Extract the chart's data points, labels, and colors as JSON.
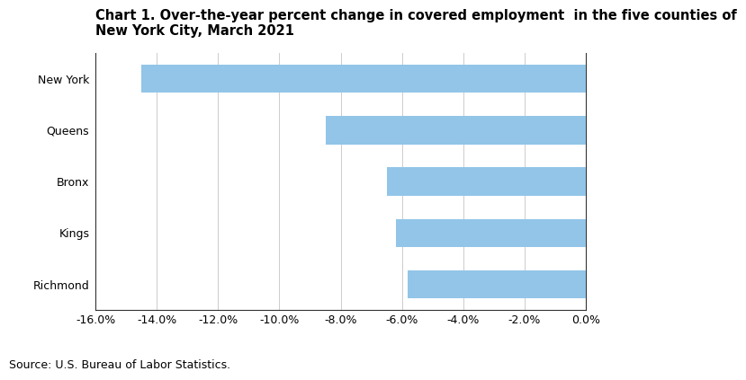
{
  "title_line1": "Chart 1. Over-the-year percent change in covered employment  in the five counties of",
  "title_line2": "New York City, March 2021",
  "categories": [
    "New York",
    "Queens",
    "Bronx",
    "Kings",
    "Richmond"
  ],
  "values": [
    -14.5,
    -8.5,
    -6.5,
    -6.2,
    -5.8
  ],
  "bar_color": "#92c5e8",
  "xlim": [
    -16.0,
    0.0
  ],
  "xticks": [
    -16,
    -14,
    -12,
    -10,
    -8,
    -6,
    -4,
    -2,
    0
  ],
  "xtick_labels": [
    "-16.0%",
    "-14.0%",
    "-12.0%",
    "-10.0%",
    "-8.0%",
    "-6.0%",
    "-4.0%",
    "-2.0%",
    "0.0%"
  ],
  "source": "Source: U.S. Bureau of Labor Statistics.",
  "background_color": "#ffffff",
  "grid_color": "#cccccc",
  "title_fontsize": 10.5,
  "tick_fontsize": 9,
  "source_fontsize": 9,
  "bar_height": 0.55
}
